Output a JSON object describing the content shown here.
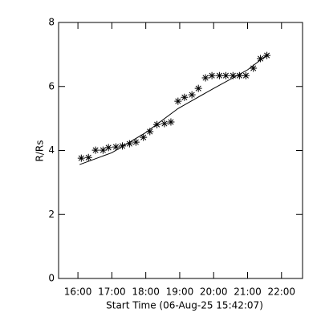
{
  "chart_data": {
    "type": "scatter",
    "xlabel": "Start Time (06-Aug-25 15:42:07)",
    "ylabel": "R/Rs",
    "xlim": [
      15.43,
      22.62
    ],
    "ylim": [
      0,
      8
    ],
    "xticks": [
      {
        "value": 16,
        "label": "16:00"
      },
      {
        "value": 17,
        "label": "17:00"
      },
      {
        "value": 18,
        "label": "18:00"
      },
      {
        "value": 19,
        "label": "19:00"
      },
      {
        "value": 20,
        "label": "20:00"
      },
      {
        "value": 21,
        "label": "21:00"
      },
      {
        "value": 22,
        "label": "22:00"
      }
    ],
    "yticks": [
      0,
      2,
      4,
      6,
      8
    ],
    "series": [
      {
        "color": "#000000",
        "marker": "asterisk",
        "x": [
          16.1,
          16.31,
          16.52,
          16.74,
          16.9,
          17.12,
          17.31,
          17.52,
          17.71,
          17.93,
          18.12,
          18.33,
          18.55,
          18.74,
          18.95,
          19.14,
          19.36,
          19.55,
          19.76,
          19.95,
          20.17,
          20.36,
          20.57,
          20.76,
          20.95,
          21.17,
          21.38,
          21.57
        ],
        "values": [
          3.76,
          3.78,
          4.01,
          4.01,
          4.09,
          4.11,
          4.14,
          4.21,
          4.26,
          4.41,
          4.59,
          4.81,
          4.84,
          4.89,
          5.54,
          5.66,
          5.74,
          5.94,
          6.27,
          6.34,
          6.34,
          6.34,
          6.34,
          6.34,
          6.34,
          6.57,
          6.87,
          6.97
        ]
      },
      {
        "color": "#000000",
        "marker": "line",
        "x": [
          16.05,
          17,
          18,
          18.95,
          20,
          21,
          21.62
        ],
        "values": [
          3.56,
          3.93,
          4.56,
          5.31,
          5.94,
          6.52,
          7.02
        ]
      }
    ]
  }
}
